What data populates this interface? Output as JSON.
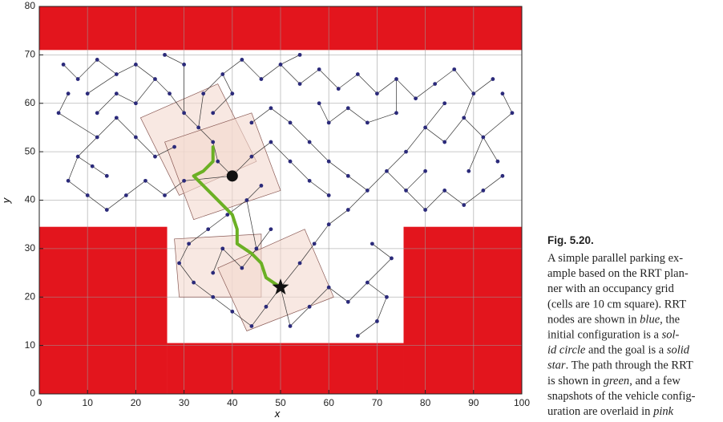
{
  "chart_data": {
    "type": "rrt",
    "xlabel": "x",
    "ylabel": "y",
    "xlim": [
      0,
      100
    ],
    "ylim": [
      0,
      80
    ],
    "xticks": [
      0,
      10,
      20,
      30,
      40,
      50,
      60,
      70,
      80,
      90,
      100
    ],
    "yticks": [
      0,
      10,
      20,
      30,
      40,
      50,
      60,
      70,
      80
    ],
    "grid": true,
    "obstacle_color": "#e3151d",
    "node_color": "#2b2a7a",
    "edge_color": "#333333",
    "path_color": "#6bb024",
    "snapshot_color": "#f4d8cf",
    "obstacles": [
      {
        "x": [
          0,
          100
        ],
        "y": [
          71,
          80
        ]
      },
      {
        "x": [
          0,
          26.5
        ],
        "y": [
          0,
          34.5
        ]
      },
      {
        "x": [
          26.5,
          75.5
        ],
        "y": [
          0,
          10.5
        ]
      },
      {
        "x": [
          75.5,
          100
        ],
        "y": [
          0,
          34.5
        ]
      }
    ],
    "snapshots": [
      {
        "x": [
          21,
          37,
          45,
          29
        ],
        "y": [
          57,
          64,
          48,
          41
        ]
      },
      {
        "x": [
          26,
          44,
          50,
          32
        ],
        "y": [
          52,
          58,
          42,
          36
        ]
      },
      {
        "x": [
          28,
          46,
          46,
          29
        ],
        "y": [
          32,
          33,
          20,
          20
        ]
      },
      {
        "x": [
          37,
          43,
          61,
          55
        ],
        "y": [
          26,
          13,
          20,
          34
        ]
      }
    ],
    "tree": {
      "x": [
        40,
        37,
        36,
        33,
        30,
        27,
        24,
        20,
        16,
        12,
        8,
        5,
        34,
        38,
        42,
        46,
        50,
        54,
        58,
        62,
        66,
        70,
        74,
        78,
        82,
        86,
        90,
        94,
        88,
        92,
        95,
        89,
        84,
        80,
        76,
        72,
        68,
        64,
        60,
        56,
        52,
        48,
        44,
        64,
        60,
        57,
        54,
        50,
        47,
        44,
        40,
        36,
        32,
        29,
        31,
        35,
        39,
        43,
        46,
        52,
        56,
        60,
        64,
        68,
        72,
        70,
        66,
        73,
        69,
        30,
        26,
        22,
        18,
        14,
        10,
        6,
        8,
        12,
        16,
        20,
        24,
        4,
        6,
        28,
        44,
        48,
        52,
        56,
        60,
        76,
        80,
        84,
        88,
        92,
        96,
        80,
        98,
        96,
        84,
        74,
        68,
        64,
        60,
        40,
        36,
        20,
        16,
        12,
        11,
        14,
        45,
        48,
        42,
        38,
        36,
        58,
        54,
        30,
        26,
        10
      ],
      "y": [
        45,
        48,
        52,
        55,
        58,
        62,
        65,
        68,
        66,
        69,
        65,
        68,
        62,
        66,
        69,
        65,
        68,
        64,
        67,
        63,
        66,
        62,
        65,
        61,
        64,
        67,
        62,
        65,
        57,
        53,
        48,
        46,
        52,
        55,
        50,
        46,
        42,
        45,
        48,
        52,
        56,
        59,
        56,
        38,
        35,
        31,
        27,
        22,
        18,
        14,
        17,
        20,
        23,
        27,
        31,
        34,
        37,
        40,
        43,
        14,
        18,
        22,
        19,
        23,
        20,
        15,
        12,
        28,
        31,
        44,
        41,
        44,
        41,
        38,
        41,
        44,
        49,
        53,
        57,
        53,
        49,
        58,
        62,
        51,
        49,
        52,
        48,
        44,
        41,
        42,
        38,
        42,
        39,
        42,
        45,
        46,
        58,
        62,
        60,
        58,
        56,
        59,
        56,
        62,
        58,
        60,
        62,
        58,
        47,
        45,
        30,
        34,
        26,
        30,
        25,
        60,
        70,
        68,
        70,
        62
      ],
      "parent": [
        null,
        0,
        1,
        2,
        3,
        4,
        5,
        6,
        7,
        8,
        9,
        10,
        3,
        12,
        13,
        14,
        15,
        16,
        17,
        18,
        19,
        20,
        21,
        22,
        23,
        24,
        25,
        26,
        26,
        28,
        29,
        29,
        28,
        32,
        33,
        34,
        35,
        36,
        37,
        38,
        39,
        40,
        41,
        36,
        43,
        44,
        45,
        46,
        47,
        48,
        49,
        50,
        51,
        52,
        53,
        54,
        55,
        56,
        57,
        47,
        59,
        60,
        61,
        62,
        63,
        64,
        65,
        63,
        67,
        0,
        69,
        70,
        71,
        72,
        73,
        74,
        75,
        76,
        77,
        78,
        79,
        77,
        81,
        80,
        0,
        84,
        85,
        86,
        87,
        35,
        89,
        90,
        91,
        92,
        93,
        89,
        29,
        96,
        33,
        22,
        99,
        100,
        101,
        13,
        103,
        6,
        105,
        106,
        76,
        108,
        57,
        110,
        110,
        112,
        113,
        102,
        16,
        4,
        117,
        8
      ]
    },
    "path": {
      "x": [
        36,
        36,
        34,
        32,
        34,
        36,
        38,
        40,
        41,
        41,
        44,
        46,
        47,
        50
      ],
      "y": [
        51,
        48,
        46,
        45,
        43,
        41,
        39,
        37,
        34,
        31,
        29,
        27,
        24,
        22
      ]
    },
    "start": [
      40,
      45
    ],
    "goal": [
      50,
      22
    ],
    "caption": {
      "label": "Fig. 5.20.",
      "lines": [
        [
          {
            "text": "A simple parallel parking ex-"
          }
        ],
        [
          {
            "text": "ample based on the RRT plan-"
          }
        ],
        [
          {
            "text": "ner with an occupancy grid"
          }
        ],
        [
          {
            "text": "(cells are 10 cm square). RRT"
          }
        ],
        [
          {
            "text": "nodes are shown in "
          },
          {
            "text": "blue",
            "italic": true
          },
          {
            "text": ", the"
          }
        ],
        [
          {
            "text": "initial configuration is a "
          },
          {
            "text": "sol-",
            "italic": true
          }
        ],
        [
          {
            "text": "id circle",
            "italic": true
          },
          {
            "text": " and the goal is a "
          },
          {
            "text": "solid",
            "italic": true
          }
        ],
        [
          {
            "text": "star",
            "italic": true
          },
          {
            "text": ". The path through the RRT"
          }
        ],
        [
          {
            "text": "is shown in "
          },
          {
            "text": "green",
            "italic": true
          },
          {
            "text": ", and a few"
          }
        ],
        [
          {
            "text": "snapshots of the vehicle config-"
          }
        ],
        [
          {
            "text": "uration are overlaid in "
          },
          {
            "text": "pink",
            "italic": true
          }
        ]
      ]
    }
  }
}
